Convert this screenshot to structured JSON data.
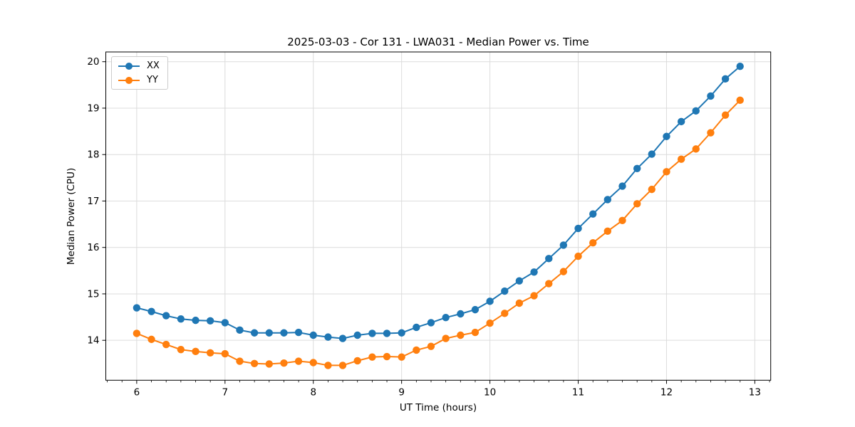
{
  "figure": {
    "background": "#ffffff"
  },
  "chart_data": {
    "type": "line",
    "title": "2025-03-03 - Cor 131 - LWA031 - Median Power vs. Time",
    "xlabel": "UT Time (hours)",
    "ylabel": "Median Power (CPU)",
    "xlim": [
      5.65,
      13.18
    ],
    "ylim": [
      13.14,
      20.21
    ],
    "xticks": [
      6,
      7,
      8,
      9,
      10,
      11,
      12,
      13
    ],
    "yticks": [
      14,
      15,
      16,
      17,
      18,
      19,
      20
    ],
    "x_minor_tick_step": 0.16667,
    "grid": true,
    "grid_color": "#dcdcdc",
    "legend": {
      "position": "upper-left",
      "entries": [
        "XX",
        "YY"
      ]
    },
    "x": [
      6.0,
      6.167,
      6.333,
      6.5,
      6.667,
      6.833,
      7.0,
      7.167,
      7.333,
      7.5,
      7.667,
      7.833,
      8.0,
      8.167,
      8.333,
      8.5,
      8.667,
      8.833,
      9.0,
      9.167,
      9.333,
      9.5,
      9.667,
      9.833,
      10.0,
      10.167,
      10.333,
      10.5,
      10.667,
      10.833,
      11.0,
      11.167,
      11.333,
      11.5,
      11.667,
      11.833,
      12.0,
      12.167,
      12.333,
      12.5,
      12.667,
      12.833
    ],
    "series": [
      {
        "name": "XX",
        "color": "#1f77b4",
        "values": [
          14.7,
          14.62,
          14.53,
          14.46,
          14.43,
          14.42,
          14.38,
          14.22,
          14.16,
          14.16,
          14.16,
          14.17,
          14.11,
          14.07,
          14.04,
          14.11,
          14.15,
          14.15,
          14.16,
          14.28,
          14.38,
          14.49,
          14.57,
          14.66,
          14.84,
          15.06,
          15.28,
          15.47,
          15.76,
          16.05,
          16.41,
          16.72,
          17.03,
          17.32,
          17.7,
          18.01,
          18.39,
          18.71,
          18.94,
          19.26,
          19.63,
          19.9
        ]
      },
      {
        "name": "YY",
        "color": "#ff7f0e",
        "values": [
          14.15,
          14.02,
          13.91,
          13.8,
          13.76,
          13.73,
          13.71,
          13.55,
          13.5,
          13.49,
          13.51,
          13.55,
          13.52,
          13.46,
          13.46,
          13.56,
          13.64,
          13.65,
          13.64,
          13.79,
          13.87,
          14.04,
          14.11,
          14.17,
          14.37,
          14.58,
          14.8,
          14.96,
          15.22,
          15.48,
          15.81,
          16.1,
          16.35,
          16.58,
          16.94,
          17.25,
          17.63,
          17.9,
          18.12,
          18.47,
          18.85,
          19.17
        ]
      }
    ]
  }
}
